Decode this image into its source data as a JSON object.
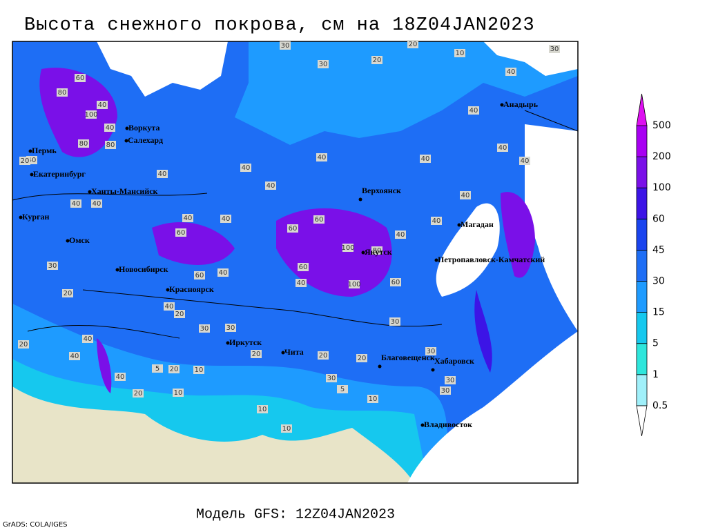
{
  "title": "Высота снежного покрова, см на 18Z04JAN2023",
  "subtitle": "Модель GFS: 12Z04JAN2023",
  "credit": "GrADS: COLA/IGES",
  "legend": {
    "levels": [
      0.5,
      1,
      5,
      15,
      30,
      45,
      60,
      100,
      200,
      500
    ],
    "colors": [
      "#ffffff",
      "#a0f0fa",
      "#2ee6dc",
      "#16c8ee",
      "#1e9bff",
      "#1e6ef5",
      "#1a44ee",
      "#3c14e6",
      "#7a10e8",
      "#a800f2",
      "#dd10f0"
    ]
  },
  "cities": [
    "Воркута",
    "Салехард",
    "Пермь",
    "Екатеринбург",
    "Ханты-Мансийск",
    "Курган",
    "Омск",
    "Новосибирск",
    "Красноярск",
    "Иркутск",
    "Чита",
    "Верхоянск",
    "Якутск",
    "Магадан",
    "Петропавловск-Камчатский",
    "Анадырь",
    "Благовещенск",
    "Хабаровск",
    "Владивосток"
  ],
  "contour_labels": [
    30,
    30,
    20,
    20,
    10,
    30,
    40,
    60,
    80,
    100,
    40,
    40,
    80,
    80,
    40,
    20,
    40,
    40,
    40,
    40,
    40,
    40,
    40,
    40,
    40,
    60,
    60,
    60,
    40,
    40,
    40,
    100,
    80,
    60,
    100,
    60,
    40,
    60,
    40,
    20,
    40,
    20,
    30,
    30,
    30,
    20,
    20,
    20,
    30,
    30,
    30,
    10,
    10,
    5,
    20,
    20,
    10,
    10,
    20,
    40,
    40,
    40,
    10,
    5,
    30,
    30,
    40,
    40,
    40
  ]
}
